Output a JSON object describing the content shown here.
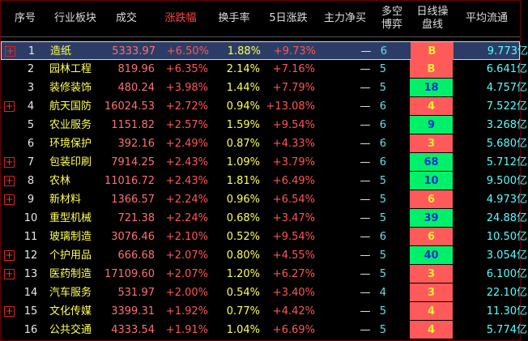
{
  "table": {
    "headers": [
      [
        "序号"
      ],
      [
        "行业板块"
      ],
      [
        "成交"
      ],
      [
        "涨跌幅"
      ],
      [
        "换手率"
      ],
      [
        "5日涨跌"
      ],
      [
        "主力净买"
      ],
      [
        "多空",
        "博弈"
      ],
      [
        "日线操",
        "盘线"
      ],
      [
        "平均流通"
      ]
    ],
    "rows": [
      {
        "cells": [
          "1",
          "造纸",
          "5333.97",
          "+6.50%",
          "1.88%",
          "+9.73%",
          "—",
          "6",
          "B",
          "9.773亿"
        ],
        "signal_tone": "red",
        "expandable": true,
        "selected": true
      },
      {
        "cells": [
          "2",
          "园林工程",
          "819.96",
          "+6.35%",
          "2.14%",
          "+7.16%",
          "—",
          "5",
          "B",
          "6.641亿"
        ],
        "signal_tone": "red",
        "expandable": false,
        "selected": false
      },
      {
        "cells": [
          "3",
          "装修装饰",
          "480.24",
          "+3.98%",
          "1.44%",
          "+7.79%",
          "—",
          "5",
          "18",
          "4.757亿"
        ],
        "signal_tone": "green",
        "expandable": false,
        "selected": false
      },
      {
        "cells": [
          "4",
          "航天国防",
          "16024.53",
          "+2.72%",
          "0.94%",
          "+13.08%",
          "—",
          "6",
          "4",
          "7.522亿"
        ],
        "signal_tone": "red",
        "expandable": true,
        "selected": false
      },
      {
        "cells": [
          "5",
          "农业服务",
          "1151.82",
          "+2.57%",
          "1.59%",
          "+9.54%",
          "—",
          "6",
          "9",
          "3.268亿"
        ],
        "signal_tone": "green",
        "expandable": false,
        "selected": false
      },
      {
        "cells": [
          "6",
          "环境保护",
          "392.16",
          "+2.49%",
          "0.87%",
          "+4.33%",
          "—",
          "6",
          "3",
          "5.680亿"
        ],
        "signal_tone": "red",
        "expandable": false,
        "selected": false
      },
      {
        "cells": [
          "7",
          "包装印刷",
          "7914.25",
          "+2.43%",
          "1.09%",
          "+3.79%",
          "—",
          "6",
          "68",
          "5.712亿"
        ],
        "signal_tone": "green",
        "expandable": true,
        "selected": false
      },
      {
        "cells": [
          "8",
          "农林",
          "11016.72",
          "+2.43%",
          "1.81%",
          "+6.49%",
          "—",
          "5",
          "10",
          "9.500亿"
        ],
        "signal_tone": "green",
        "expandable": true,
        "selected": false
      },
      {
        "cells": [
          "9",
          "新材料",
          "1366.57",
          "+2.24%",
          "0.96%",
          "+6.54%",
          "—",
          "5",
          "6",
          "4.973亿"
        ],
        "signal_tone": "red",
        "expandable": true,
        "selected": false
      },
      {
        "cells": [
          "10",
          "重型机械",
          "721.38",
          "+2.24%",
          "0.68%",
          "+3.47%",
          "—",
          "5",
          "39",
          "24.88亿"
        ],
        "signal_tone": "green",
        "expandable": false,
        "selected": false
      },
      {
        "cells": [
          "11",
          "玻璃制造",
          "3076.46",
          "+2.10%",
          "0.52%",
          "+9.54%",
          "—",
          "6",
          "6",
          "10.50亿"
        ],
        "signal_tone": "red",
        "expandable": false,
        "selected": false
      },
      {
        "cells": [
          "12",
          "个护用品",
          "666.68",
          "+2.07%",
          "0.80%",
          "+4.55%",
          "—",
          "5",
          "40",
          "3.054亿"
        ],
        "signal_tone": "green",
        "expandable": true,
        "selected": false
      },
      {
        "cells": [
          "13",
          "医药制造",
          "17109.60",
          "+2.07%",
          "1.20%",
          "+6.27%",
          "—",
          "5",
          "3",
          "6.100亿"
        ],
        "signal_tone": "red",
        "expandable": true,
        "selected": false
      },
      {
        "cells": [
          "14",
          "汽车服务",
          "531.97",
          "+2.00%",
          "0.54%",
          "+3.40%",
          "—",
          "4",
          "3",
          "22.10亿"
        ],
        "signal_tone": "red",
        "expandable": false,
        "selected": false
      },
      {
        "cells": [
          "15",
          "文化传媒",
          "3399.31",
          "+1.92%",
          "0.77%",
          "+4.42%",
          "—",
          "5",
          "4",
          "11.30亿"
        ],
        "signal_tone": "red",
        "expandable": true,
        "selected": false
      },
      {
        "cells": [
          "16",
          "公共交通",
          "4333.54",
          "+1.91%",
          "1.04%",
          "+6.69%",
          "—",
          "5",
          "4",
          "5.774亿"
        ],
        "signal_tone": "red",
        "expandable": false,
        "selected": false
      }
    ]
  }
}
